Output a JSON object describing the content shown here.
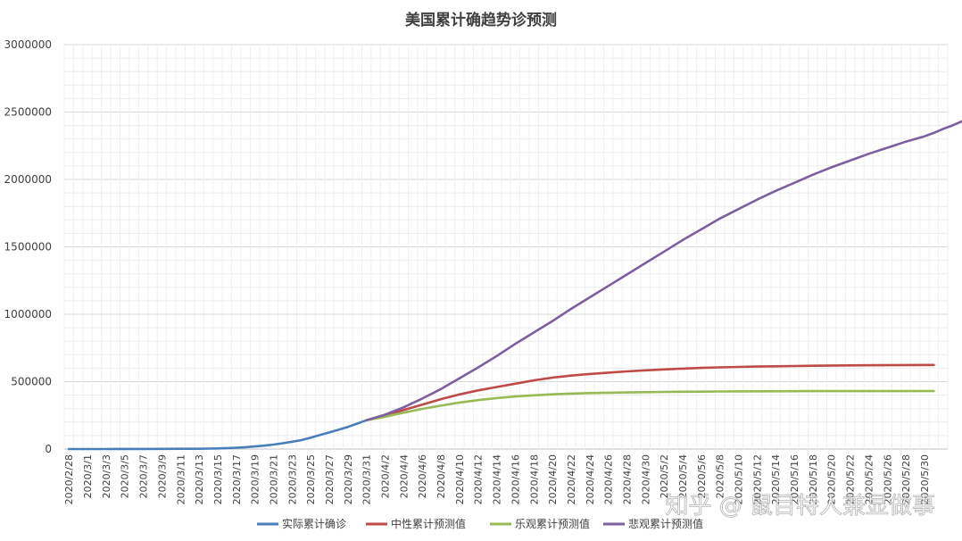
{
  "chart_data": {
    "type": "line",
    "title": "美国累计确趋势诊预测",
    "xlabel": "",
    "ylabel": "",
    "ylim": [
      0,
      3000000
    ],
    "yticks": [
      0,
      500000,
      1000000,
      1500000,
      2000000,
      2500000,
      3000000
    ],
    "grid": true,
    "legend_position": "bottom",
    "x_start": "2020/2/28",
    "x_end": "2020/5/31",
    "tick_labels": [
      "2020/2/28",
      "2020/3/1",
      "2020/3/3",
      "2020/3/5",
      "2020/3/7",
      "2020/3/9",
      "2020/3/11",
      "2020/3/13",
      "2020/3/15",
      "2020/3/17",
      "2020/3/19",
      "2020/3/21",
      "2020/3/23",
      "2020/3/25",
      "2020/3/27",
      "2020/3/29",
      "2020/3/31",
      "2020/4/2",
      "2020/4/4",
      "2020/4/6",
      "2020/4/8",
      "2020/4/10",
      "2020/4/12",
      "2020/4/14",
      "2020/4/16",
      "2020/4/18",
      "2020/4/20",
      "2020/4/22",
      "2020/4/24",
      "2020/4/26",
      "2020/4/28",
      "2020/4/30",
      "2020/5/2",
      "2020/5/4",
      "2020/5/6",
      "2020/5/8",
      "2020/5/10",
      "2020/5/12",
      "2020/5/14",
      "2020/5/16",
      "2020/5/18",
      "2020/5/20",
      "2020/5/22",
      "2020/5/24",
      "2020/5/26",
      "2020/5/28",
      "2020/5/30"
    ],
    "series": [
      {
        "name": "实际累计确诊",
        "color": "#4a7ebb",
        "points": [
          [
            0,
            60
          ],
          [
            2,
            80
          ],
          [
            4,
            200
          ],
          [
            6,
            400
          ],
          [
            8,
            550
          ],
          [
            10,
            1000
          ],
          [
            12,
            1700
          ],
          [
            14,
            2200
          ],
          [
            15,
            3500
          ],
          [
            16,
            4500
          ],
          [
            17,
            7000
          ],
          [
            18,
            10000
          ],
          [
            19,
            14000
          ],
          [
            20,
            19000
          ],
          [
            21,
            25000
          ],
          [
            22,
            33000
          ],
          [
            23,
            43000
          ],
          [
            24,
            54000
          ],
          [
            25,
            66000
          ],
          [
            26,
            85000
          ],
          [
            27,
            104000
          ],
          [
            28,
            123000
          ],
          [
            29,
            143000
          ],
          [
            30,
            164000
          ],
          [
            31,
            189000
          ],
          [
            32,
            214000
          ]
        ]
      },
      {
        "name": "中性累计预测值",
        "color": "#be4b48",
        "points": [
          [
            32,
            214000
          ],
          [
            34,
            250000
          ],
          [
            36,
            290000
          ],
          [
            38,
            330000
          ],
          [
            40,
            370000
          ],
          [
            42,
            405000
          ],
          [
            44,
            435000
          ],
          [
            46,
            460000
          ],
          [
            48,
            485000
          ],
          [
            50,
            510000
          ],
          [
            52,
            530000
          ],
          [
            54,
            545000
          ],
          [
            56,
            557000
          ],
          [
            58,
            567000
          ],
          [
            60,
            576000
          ],
          [
            62,
            584000
          ],
          [
            64,
            591000
          ],
          [
            66,
            597000
          ],
          [
            68,
            602000
          ],
          [
            70,
            606000
          ],
          [
            72,
            609000
          ],
          [
            74,
            612000
          ],
          [
            76,
            614000
          ],
          [
            78,
            616000
          ],
          [
            80,
            618000
          ],
          [
            85,
            621000
          ],
          [
            90,
            623000
          ],
          [
            93,
            624000
          ]
        ]
      },
      {
        "name": "乐观累计预测值",
        "color": "#98b954",
        "points": [
          [
            32,
            214000
          ],
          [
            34,
            240000
          ],
          [
            36,
            270000
          ],
          [
            38,
            298000
          ],
          [
            40,
            322000
          ],
          [
            42,
            345000
          ],
          [
            44,
            363000
          ],
          [
            46,
            378000
          ],
          [
            48,
            390000
          ],
          [
            50,
            399000
          ],
          [
            52,
            406000
          ],
          [
            54,
            411000
          ],
          [
            56,
            415000
          ],
          [
            58,
            418000
          ],
          [
            60,
            420000
          ],
          [
            62,
            422000
          ],
          [
            64,
            424000
          ],
          [
            66,
            425000
          ],
          [
            68,
            426000
          ],
          [
            70,
            427000
          ],
          [
            75,
            428500
          ],
          [
            80,
            429500
          ],
          [
            85,
            430000
          ],
          [
            93,
            430500
          ]
        ]
      },
      {
        "name": "悲观累计预测值",
        "color": "#7d5fa0",
        "points": [
          [
            32,
            214000
          ],
          [
            34,
            255000
          ],
          [
            36,
            310000
          ],
          [
            38,
            375000
          ],
          [
            40,
            445000
          ],
          [
            42,
            525000
          ],
          [
            44,
            605000
          ],
          [
            46,
            690000
          ],
          [
            48,
            780000
          ],
          [
            50,
            865000
          ],
          [
            52,
            950000
          ],
          [
            54,
            1040000
          ],
          [
            56,
            1125000
          ],
          [
            58,
            1210000
          ],
          [
            60,
            1295000
          ],
          [
            62,
            1380000
          ],
          [
            64,
            1465000
          ],
          [
            66,
            1550000
          ],
          [
            68,
            1630000
          ],
          [
            70,
            1710000
          ],
          [
            72,
            1780000
          ],
          [
            74,
            1850000
          ],
          [
            76,
            1915000
          ],
          [
            78,
            1975000
          ],
          [
            80,
            2035000
          ],
          [
            82,
            2090000
          ],
          [
            84,
            2140000
          ],
          [
            86,
            2190000
          ],
          [
            88,
            2235000
          ],
          [
            90,
            2280000
          ],
          [
            92,
            2320000
          ],
          [
            93,
            2345000
          ],
          [
            94,
            2375000
          ],
          [
            95,
            2400000
          ],
          [
            96,
            2430000
          ]
        ]
      }
    ]
  },
  "watermark": "知乎 @ 鼠目特人兼显做事"
}
